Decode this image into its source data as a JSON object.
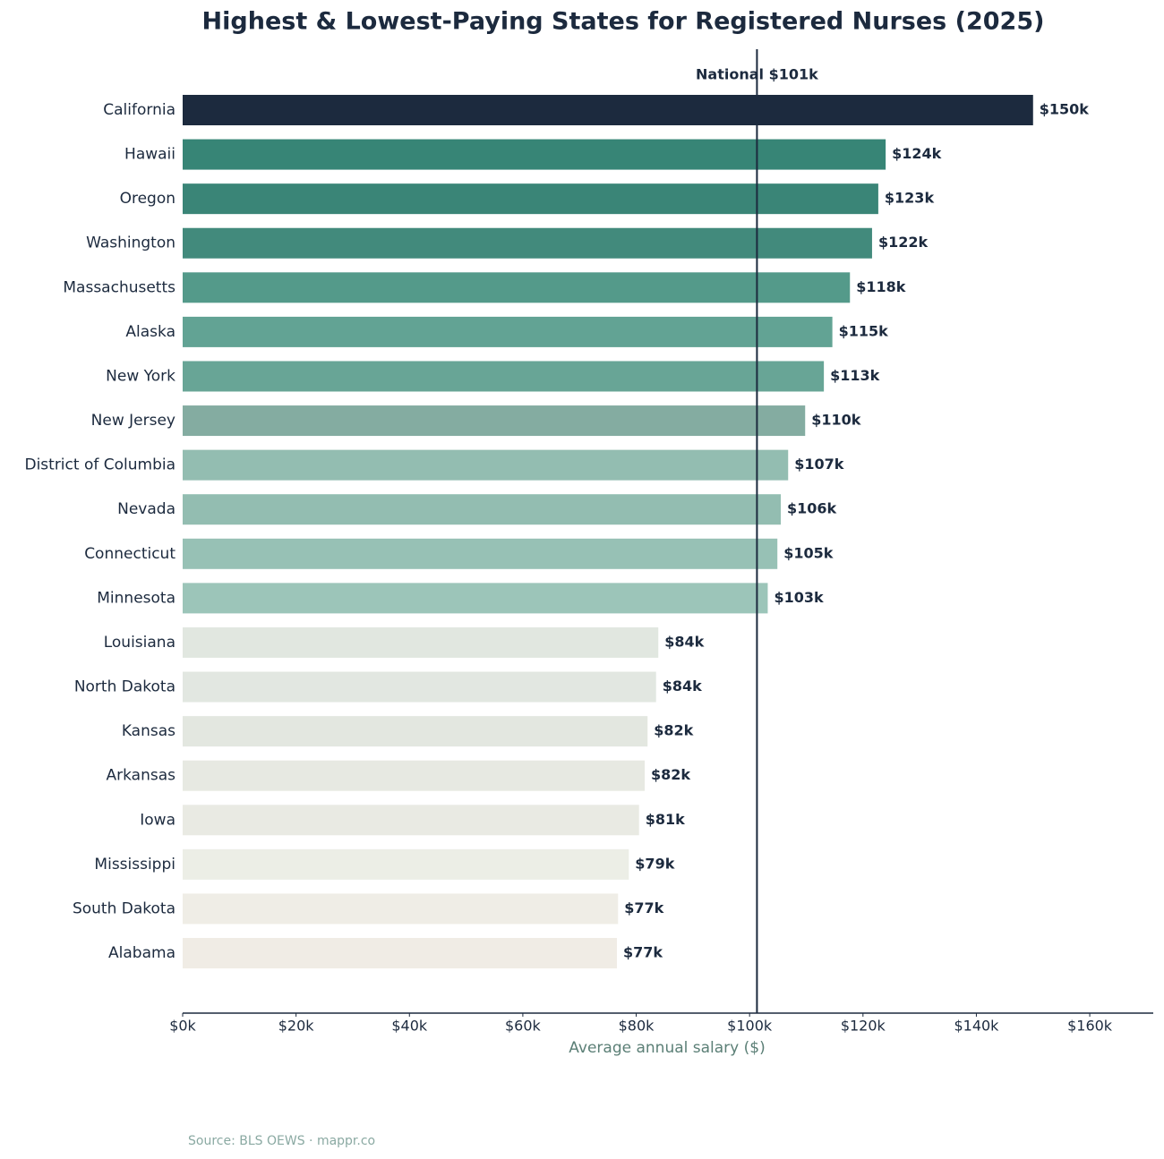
{
  "chart_data": {
    "type": "hbar",
    "title": "Highest & Lowest-Paying States for Registered Nurses (2025)",
    "x_label": "Average annual salary ($)",
    "source": "Source: BLS OEWS · mappr.co",
    "categories": [
      "California",
      "Hawaii",
      "Oregon",
      "Washington",
      "Massachusetts",
      "Alaska",
      "New York",
      "New Jersey",
      "District of Columbia",
      "Nevada",
      "Connecticut",
      "Minnesota",
      "Louisiana",
      "North Dakota",
      "Kansas",
      "Arkansas",
      "Iowa",
      "Mississippi",
      "South Dakota",
      "Alabama"
    ],
    "values": [
      150000,
      124000,
      122700,
      121600,
      117700,
      114600,
      113100,
      109800,
      106800,
      105500,
      104900,
      103200,
      83900,
      83500,
      82000,
      81500,
      80500,
      78700,
      76800,
      76600
    ],
    "value_labels": [
      "$150k",
      "$124k",
      "$123k",
      "$122k",
      "$118k",
      "$115k",
      "$113k",
      "$110k",
      "$107k",
      "$106k",
      "$105k",
      "$103k",
      "$84k",
      "$84k",
      "$82k",
      "$82k",
      "$81k",
      "$79k",
      "$77k",
      "$77k"
    ],
    "colors": [
      "#1c2a3e",
      "#378576",
      "#3a8577",
      "#428a7c",
      "#549a8a",
      "#62a394",
      "#68a596",
      "#84aca1",
      "#93bdb1",
      "#93bdb1",
      "#97c1b5",
      "#9cc5b9",
      "#e1e7e0",
      "#e2e7e1",
      "#e3e7e0",
      "#e7e9e2",
      "#e9eae3",
      "#eceee6",
      "#efede6",
      "#f0ece5"
    ],
    "xlim": [
      0,
      171200
    ],
    "xticks": [
      {
        "value": 0,
        "label": "$0k"
      },
      {
        "value": 20000,
        "label": "$20k"
      },
      {
        "value": 40000,
        "label": "$40k"
      },
      {
        "value": 60000,
        "label": "$60k"
      },
      {
        "value": 80000,
        "label": "$80k"
      },
      {
        "value": 100000,
        "label": "$100k"
      },
      {
        "value": 120000,
        "label": "$120k"
      },
      {
        "value": 140000,
        "label": "$140k"
      },
      {
        "value": 160000,
        "label": "$160k"
      }
    ],
    "reference_line": {
      "value": 101300,
      "label": "National $101k",
      "color": "#1c2a3e"
    },
    "grid": false
  }
}
